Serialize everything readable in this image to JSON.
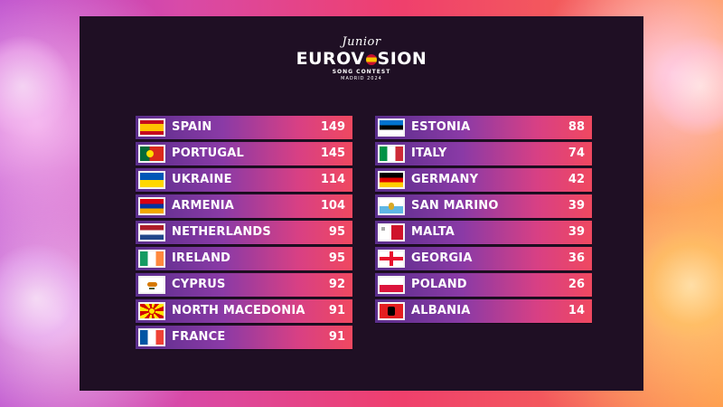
{
  "logo": {
    "junior": "Junior",
    "main_part1": "EUROV",
    "main_part2": "SION",
    "subtitle": "SONG CONTEST",
    "location": "MADRID 2024"
  },
  "scoreboard": {
    "left": [
      {
        "country": "SPAIN",
        "points": "149",
        "flag": "spain-flag-icon"
      },
      {
        "country": "PORTUGAL",
        "points": "145",
        "flag": "portugal-flag-icon"
      },
      {
        "country": "UKRAINE",
        "points": "114",
        "flag": "ukraine-flag-icon"
      },
      {
        "country": "ARMENIA",
        "points": "104",
        "flag": "armenia-flag-icon"
      },
      {
        "country": "NETHERLANDS",
        "points": "95",
        "flag": "netherlands-flag-icon"
      },
      {
        "country": "IRELAND",
        "points": "95",
        "flag": "ireland-flag-icon"
      },
      {
        "country": "CYPRUS",
        "points": "92",
        "flag": "cyprus-flag-icon"
      },
      {
        "country": "NORTH MACEDONIA",
        "points": "91",
        "flag": "north-macedonia-flag-icon"
      },
      {
        "country": "FRANCE",
        "points": "91",
        "flag": "france-flag-icon"
      }
    ],
    "right": [
      {
        "country": "ESTONIA",
        "points": "88",
        "flag": "estonia-flag-icon"
      },
      {
        "country": "ITALY",
        "points": "74",
        "flag": "italy-flag-icon"
      },
      {
        "country": "GERMANY",
        "points": "42",
        "flag": "germany-flag-icon"
      },
      {
        "country": "SAN MARINO",
        "points": "39",
        "flag": "san-marino-flag-icon"
      },
      {
        "country": "MALTA",
        "points": "39",
        "flag": "malta-flag-icon"
      },
      {
        "country": "GEORGIA",
        "points": "36",
        "flag": "georgia-flag-icon"
      },
      {
        "country": "POLAND",
        "points": "26",
        "flag": "poland-flag-icon"
      },
      {
        "country": "ALBANIA",
        "points": "14",
        "flag": "albania-flag-icon"
      }
    ]
  }
}
